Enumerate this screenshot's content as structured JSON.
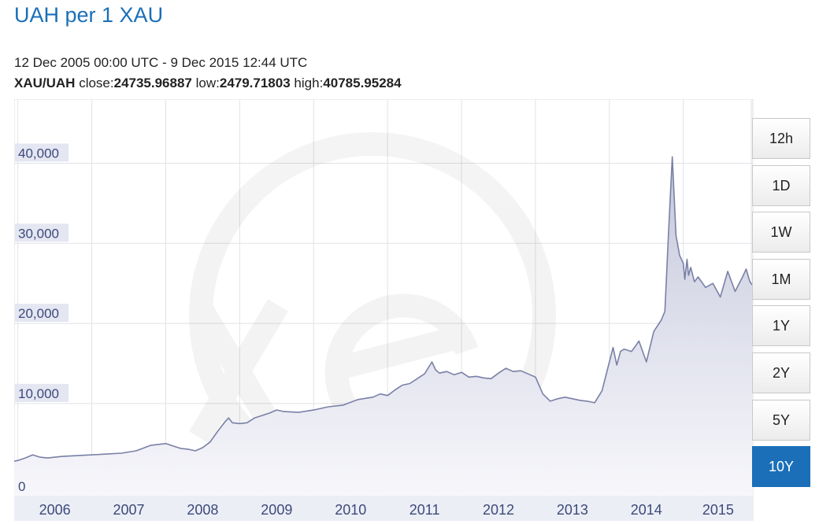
{
  "header": {
    "title": "UAH per 1 XAU",
    "range_text": "12 Dec 2005 00:00 UTC - 9 Dec 2015 12:44 UTC",
    "pair": "XAU/UAH",
    "close_label": "close:",
    "close_value": "24735.96887",
    "low_label": "low:",
    "low_value": "2479.71803",
    "high_label": "high:",
    "high_value": "40785.95284"
  },
  "time_buttons": [
    {
      "label": "12h",
      "active": false
    },
    {
      "label": "1D",
      "active": false
    },
    {
      "label": "1W",
      "active": false
    },
    {
      "label": "1M",
      "active": false
    },
    {
      "label": "1Y",
      "active": false
    },
    {
      "label": "2Y",
      "active": false
    },
    {
      "label": "5Y",
      "active": false
    },
    {
      "label": "10Y",
      "active": true
    }
  ],
  "colors": {
    "accent": "#1a6fb8",
    "line": "#7a80a6",
    "fill_top": "#c5c8dc",
    "fill_bottom": "#f7f7fb",
    "grid": "#e2e2e8",
    "label_bg": "#e4e6f2",
    "label_text": "#3c4a7a"
  },
  "chart_data": {
    "type": "area",
    "title": "UAH per 1 XAU",
    "xlabel": "",
    "ylabel": "",
    "ylim": [
      -1500,
      48000
    ],
    "xlim": [
      2005.95,
      2015.94
    ],
    "grid": true,
    "y_ticks": [
      0,
      10000,
      20000,
      30000,
      40000
    ],
    "y_tick_labels": [
      "0",
      "10,000",
      "20,000",
      "30,000",
      "40,000"
    ],
    "x_ticks": [
      "2006",
      "2007",
      "2008",
      "2009",
      "2010",
      "2011",
      "2012",
      "2013",
      "2014",
      "2015"
    ],
    "series": [
      {
        "x": [
          2005.95,
          2006.0,
          2006.1,
          2006.2,
          2006.3,
          2006.4,
          2006.5,
          2006.6,
          2006.8,
          2007.0,
          2007.2,
          2007.4,
          2007.6,
          2007.8,
          2008.0,
          2008.1,
          2008.2,
          2008.3,
          2008.4,
          2008.5,
          2008.6,
          2008.7,
          2008.75,
          2008.8,
          2008.85,
          2008.9,
          2009.0,
          2009.1,
          2009.2,
          2009.4,
          2009.5,
          2009.6,
          2009.8,
          2010.0,
          2010.2,
          2010.4,
          2010.6,
          2010.8,
          2010.9,
          2011.0,
          2011.1,
          2011.2,
          2011.3,
          2011.4,
          2011.5,
          2011.6,
          2011.65,
          2011.7,
          2011.8,
          2011.9,
          2012.0,
          2012.1,
          2012.2,
          2012.3,
          2012.4,
          2012.5,
          2012.6,
          2012.7,
          2012.8,
          2012.9,
          2013.0,
          2013.1,
          2013.2,
          2013.3,
          2013.4,
          2013.5,
          2013.6,
          2013.7,
          2013.8,
          2013.9,
          2014.0,
          2014.05,
          2014.1,
          2014.15,
          2014.2,
          2014.3,
          2014.4,
          2014.5,
          2014.6,
          2014.7,
          2014.75,
          2014.8,
          2014.85,
          2014.9,
          2014.95,
          2015.0,
          2015.02,
          2015.05,
          2015.07,
          2015.1,
          2015.15,
          2015.2,
          2015.3,
          2015.4,
          2015.5,
          2015.6,
          2015.7,
          2015.8,
          2015.85,
          2015.9,
          2015.94
        ],
        "values": [
          2800,
          2900,
          3200,
          3600,
          3300,
          3200,
          3300,
          3400,
          3500,
          3600,
          3700,
          3800,
          4100,
          4800,
          5000,
          4700,
          4400,
          4300,
          4100,
          4500,
          5200,
          6500,
          7100,
          7700,
          8200,
          7600,
          7500,
          7600,
          8200,
          8800,
          9200,
          9000,
          8900,
          9200,
          9600,
          9800,
          10500,
          10800,
          11200,
          11000,
          11700,
          12300,
          12500,
          13100,
          13700,
          15200,
          14200,
          13800,
          14000,
          13600,
          13900,
          13300,
          13400,
          13200,
          13100,
          13800,
          14400,
          14000,
          14100,
          13700,
          13300,
          11200,
          10300,
          10600,
          10800,
          10600,
          10400,
          10300,
          10100,
          11600,
          15200,
          17000,
          14800,
          16500,
          16800,
          16500,
          17800,
          15200,
          19000,
          20400,
          21500,
          31500,
          40800,
          31000,
          28500,
          27500,
          25500,
          28000,
          26000,
          27000,
          25200,
          25800,
          24500,
          25000,
          23300,
          26500,
          24000,
          25800,
          26800,
          25200,
          24736
        ]
      }
    ]
  }
}
